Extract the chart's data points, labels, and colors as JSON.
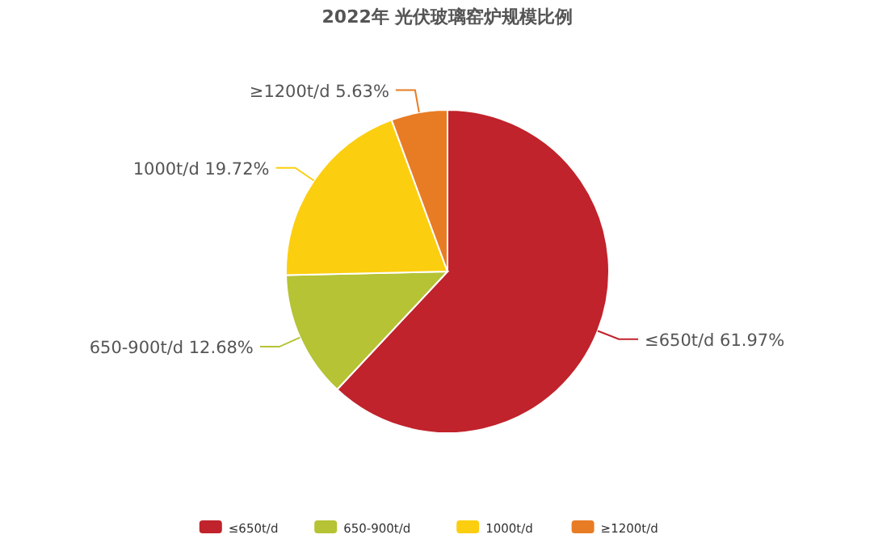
{
  "chart_data": {
    "type": "pie",
    "title": "2022年 光伏玻璃窑炉规模比例",
    "categories": [
      "≤650t/d",
      "650-900t/d",
      "1000t/d",
      "≥1200t/d"
    ],
    "values": [
      61.97,
      12.68,
      19.72,
      5.63
    ],
    "value_labels": [
      "61.97%",
      "12.68%",
      "19.72%",
      "5.63%"
    ],
    "colors": [
      "#c0232b",
      "#b5c334",
      "#fcce10",
      "#e87c25"
    ],
    "legend": "bottom"
  }
}
